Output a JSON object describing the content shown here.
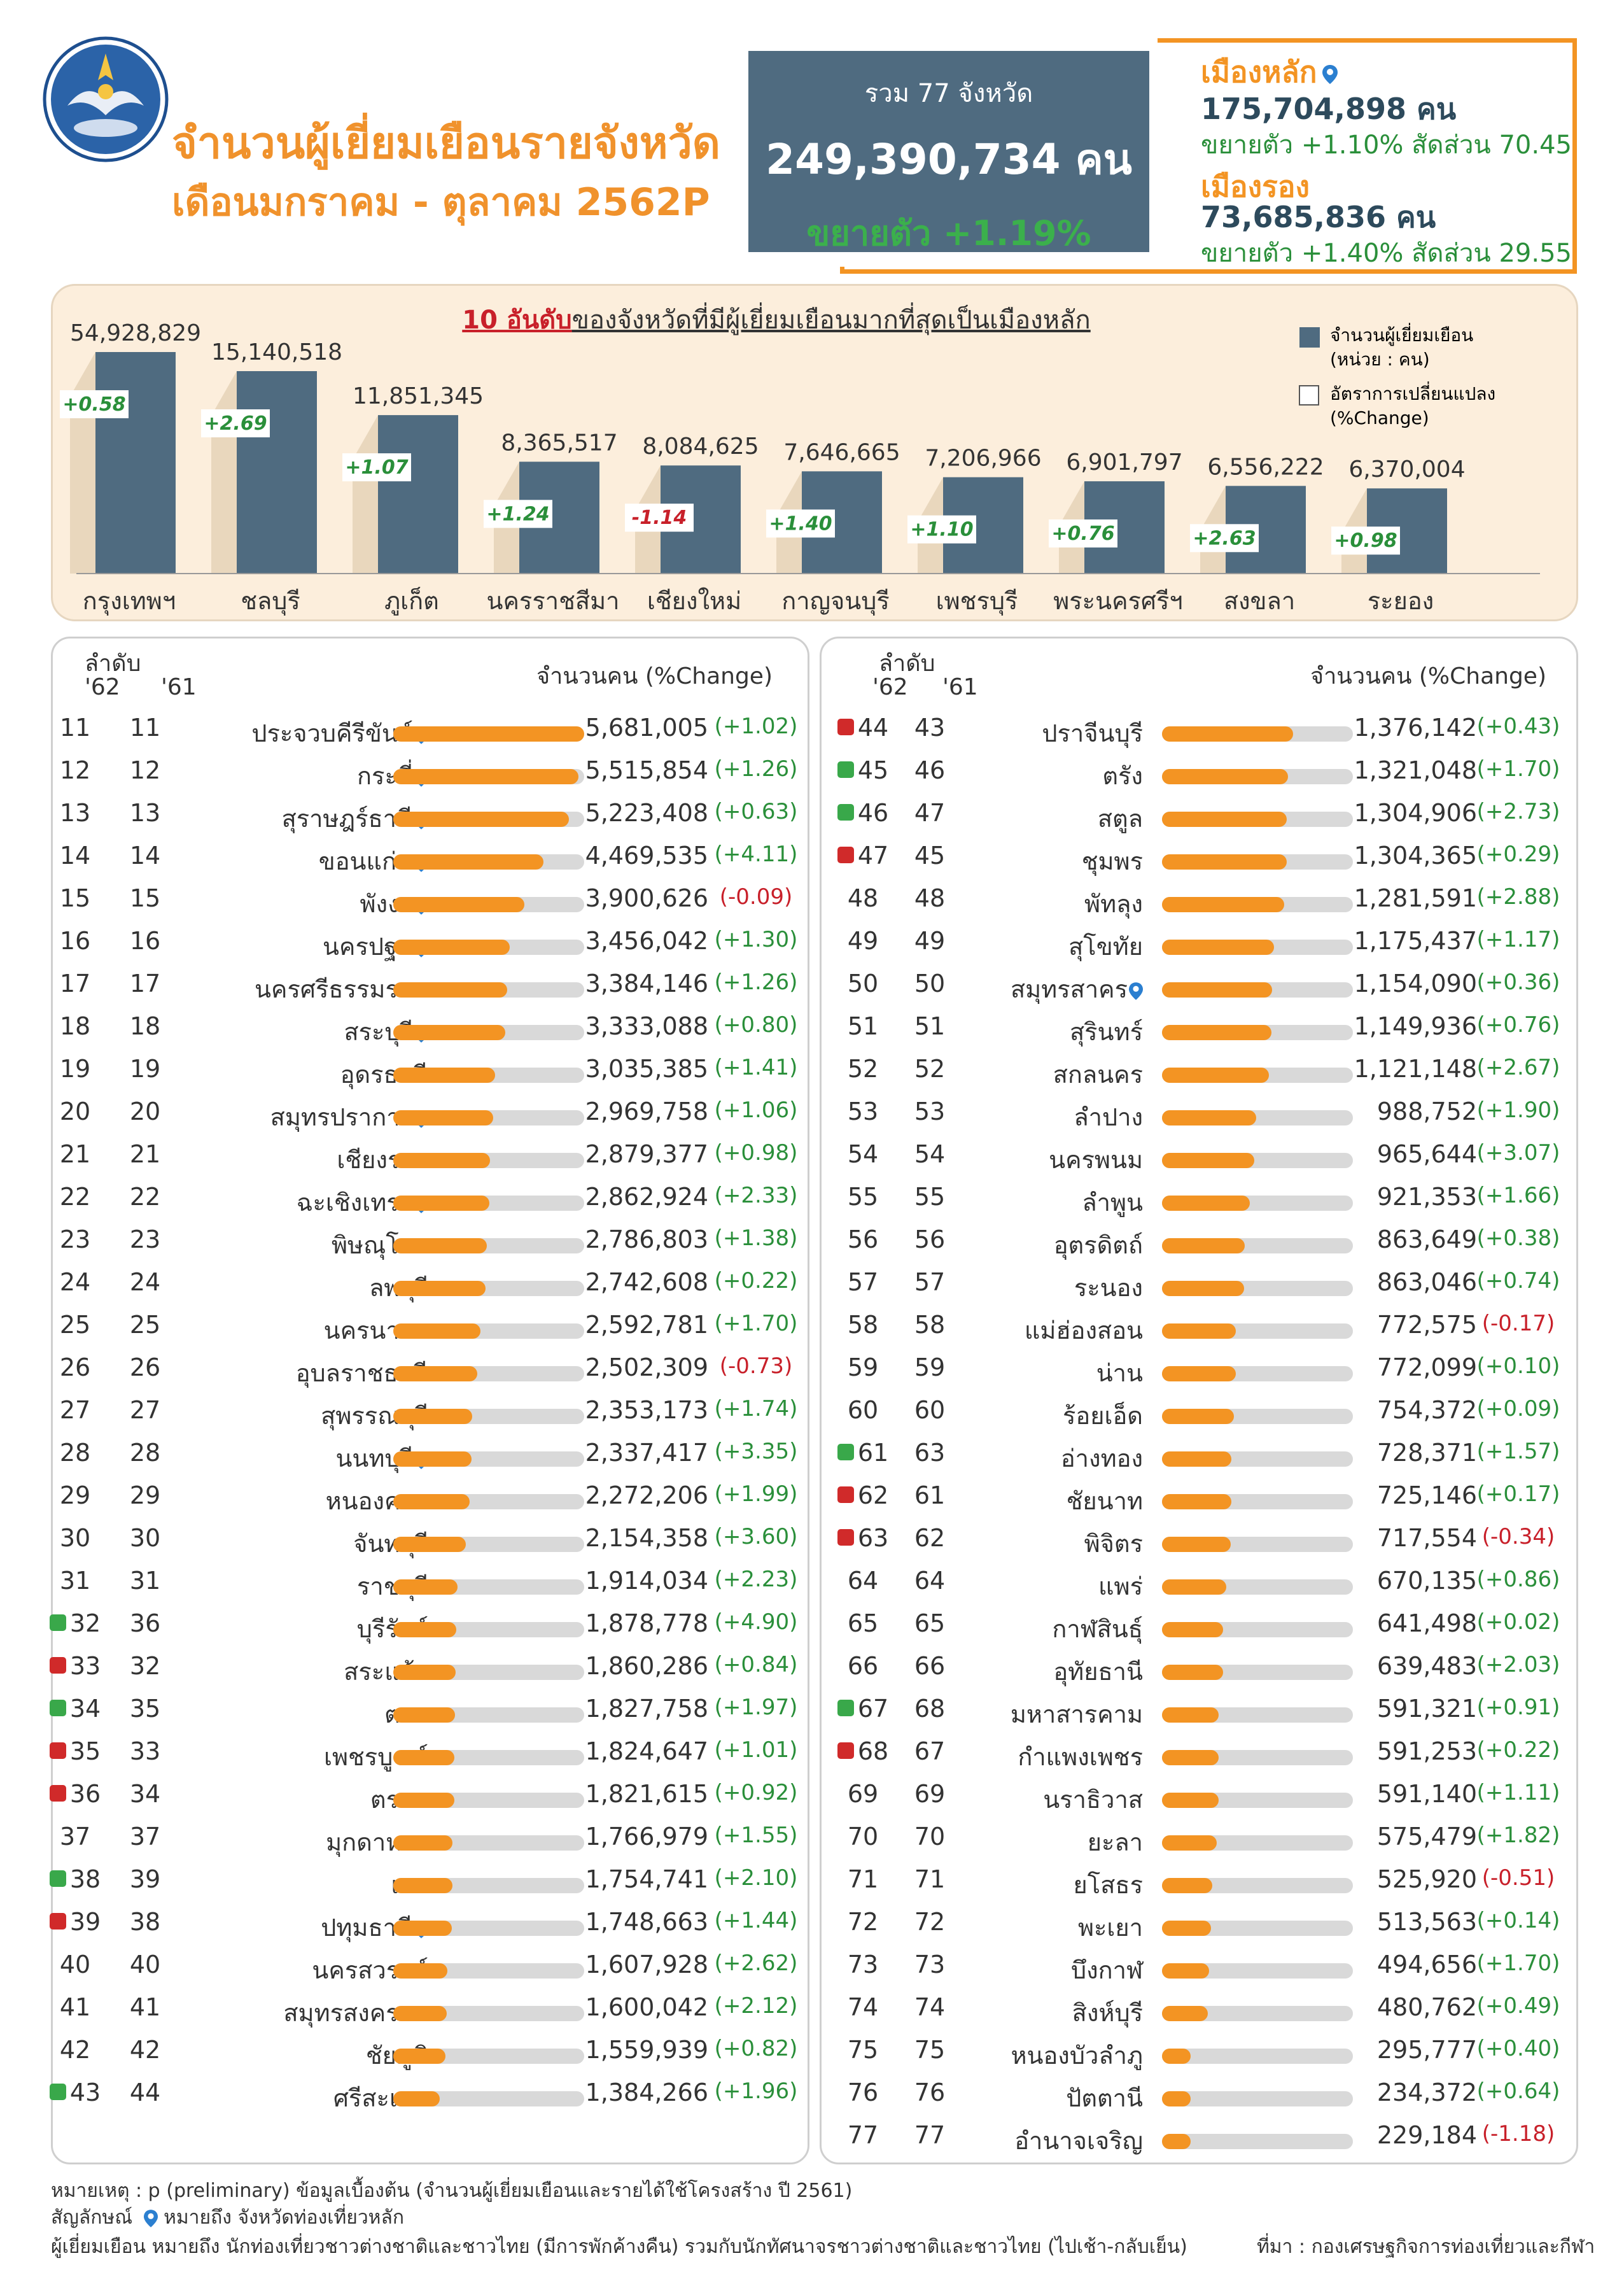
{
  "title_line1": "จำนวนผู้เยี่ยมเยือนรายจังหวัด",
  "title_line2": "เดือนมกราคม - ตุลาคม 2562P",
  "total": {
    "label": "รวม 77 จังหวัด",
    "value": "249,390,734 คน",
    "growth": "ขยายตัว +1.19%"
  },
  "main_city": {
    "label": "เมืองหลัก",
    "value": "175,704,898 คน",
    "detail": "ขยายตัว +1.10% สัดส่วน 70.45"
  },
  "secondary_city": {
    "label": "เมืองรอง",
    "value": "73,685,836 คน",
    "detail": "ขยายตัว +1.40% สัดส่วน 29.55"
  },
  "top10": {
    "title_hl": "10 อันดับ",
    "title_rest": "ของจังหวัดที่มีผู้เยี่ยมเยือนมากที่สุดเป็นเมืองหลัก",
    "legend_bar": "จำนวนผู้เยี่ยมเยือน",
    "legend_bar_unit": "(หน่วย : คน)",
    "legend_change": "อัตราการเปลี่ยนแปลง",
    "legend_change_unit": "(%Change)"
  },
  "chart_data": {
    "type": "bar",
    "categories": [
      "กรุงเทพฯ",
      "ชลบุรี",
      "ภูเก็ต",
      "นครราชสีมา",
      "เชียงใหม่",
      "กาญจนบุรี",
      "เพชรบุรี",
      "พระนครศรีฯ",
      "สงขลา",
      "ระยอง"
    ],
    "values": [
      54928829,
      15140518,
      11851345,
      8365517,
      8084625,
      7646665,
      7206966,
      6901797,
      6556222,
      6370004
    ],
    "value_labels": [
      "54,928,829",
      "15,140,518",
      "11,851,345",
      "8,365,517",
      "8,084,625",
      "7,646,665",
      "7,206,966",
      "6,901,797",
      "6,556,222",
      "6,370,004"
    ],
    "change": [
      "+0.58",
      "+2.69",
      "+1.07",
      "+1.24",
      "-1.14",
      "+1.40",
      "+1.10",
      "+0.76",
      "+2.63",
      "+0.98"
    ]
  },
  "table_headers": {
    "rank": "ลำดับ",
    "y62": "'62",
    "y61": "'61",
    "value": "จำนวนคน (%Change)"
  },
  "left_rows": [
    {
      "r62": "11",
      "r61": "11",
      "name": "ประจวบคีรีขันธ์",
      "pin": true,
      "val": "5,681,005",
      "chg": "(+1.02)",
      "v": 5681005,
      "dir": ""
    },
    {
      "r62": "12",
      "r61": "12",
      "name": "กระบี่",
      "pin": true,
      "val": "5,515,854",
      "chg": "(+1.26)",
      "v": 5515854,
      "dir": ""
    },
    {
      "r62": "13",
      "r61": "13",
      "name": "สุราษฎร์ธานี",
      "pin": true,
      "val": "5,223,408",
      "chg": "(+0.63)",
      "v": 5223408,
      "dir": ""
    },
    {
      "r62": "14",
      "r61": "14",
      "name": "ขอนแก่น",
      "pin": true,
      "val": "4,469,535",
      "chg": "(+4.11)",
      "v": 4469535,
      "dir": ""
    },
    {
      "r62": "15",
      "r61": "15",
      "name": "พังงา",
      "pin": true,
      "val": "3,900,626",
      "chg": "(-0.09)",
      "v": 3900626,
      "dir": ""
    },
    {
      "r62": "16",
      "r61": "16",
      "name": "นครปฐม",
      "pin": true,
      "val": "3,456,042",
      "chg": "(+1.30)",
      "v": 3456042,
      "dir": ""
    },
    {
      "r62": "17",
      "r61": "17",
      "name": "นครศรีธรรมราช",
      "pin": false,
      "val": "3,384,146",
      "chg": "(+1.26)",
      "v": 3384146,
      "dir": ""
    },
    {
      "r62": "18",
      "r61": "18",
      "name": "สระบุรี",
      "pin": true,
      "val": "3,333,088",
      "chg": "(+0.80)",
      "v": 3333088,
      "dir": ""
    },
    {
      "r62": "19",
      "r61": "19",
      "name": "อุดรธานี",
      "pin": false,
      "val": "3,035,385",
      "chg": "(+1.41)",
      "v": 3035385,
      "dir": ""
    },
    {
      "r62": "20",
      "r61": "20",
      "name": "สมุทรปราการ",
      "pin": true,
      "val": "2,969,758",
      "chg": "(+1.06)",
      "v": 2969758,
      "dir": ""
    },
    {
      "r62": "21",
      "r61": "21",
      "name": "เชียงราย",
      "pin": false,
      "val": "2,879,377",
      "chg": "(+0.98)",
      "v": 2879377,
      "dir": ""
    },
    {
      "r62": "22",
      "r61": "22",
      "name": "ฉะเชิงเทรา",
      "pin": true,
      "val": "2,862,924",
      "chg": "(+2.33)",
      "v": 2862924,
      "dir": ""
    },
    {
      "r62": "23",
      "r61": "23",
      "name": "พิษณุโลก",
      "pin": false,
      "val": "2,786,803",
      "chg": "(+1.38)",
      "v": 2786803,
      "dir": ""
    },
    {
      "r62": "24",
      "r61": "24",
      "name": "ลพบุรี",
      "pin": false,
      "val": "2,742,608",
      "chg": "(+0.22)",
      "v": 2742608,
      "dir": ""
    },
    {
      "r62": "25",
      "r61": "25",
      "name": "นครนายก",
      "pin": false,
      "val": "2,592,781",
      "chg": "(+1.70)",
      "v": 2592781,
      "dir": ""
    },
    {
      "r62": "26",
      "r61": "26",
      "name": "อุบลราชธานี",
      "pin": false,
      "val": "2,502,309",
      "chg": "(-0.73)",
      "v": 2502309,
      "dir": ""
    },
    {
      "r62": "27",
      "r61": "27",
      "name": "สุพรรณบุรี",
      "pin": false,
      "val": "2,353,173",
      "chg": "(+1.74)",
      "v": 2353173,
      "dir": ""
    },
    {
      "r62": "28",
      "r61": "28",
      "name": "นนทบุรี",
      "pin": true,
      "val": "2,337,417",
      "chg": "(+3.35)",
      "v": 2337417,
      "dir": ""
    },
    {
      "r62": "29",
      "r61": "29",
      "name": "หนองคาย",
      "pin": false,
      "val": "2,272,206",
      "chg": "(+1.99)",
      "v": 2272206,
      "dir": ""
    },
    {
      "r62": "30",
      "r61": "30",
      "name": "จันทบุรี",
      "pin": false,
      "val": "2,154,358",
      "chg": "(+3.60)",
      "v": 2154358,
      "dir": ""
    },
    {
      "r62": "31",
      "r61": "31",
      "name": "ราชบุรี",
      "pin": false,
      "val": "1,914,034",
      "chg": "(+2.23)",
      "v": 1914034,
      "dir": ""
    },
    {
      "r62": "32",
      "r61": "36",
      "name": "บุรีรัมย์",
      "pin": false,
      "val": "1,878,778",
      "chg": "(+4.90)",
      "v": 1878778,
      "dir": "up"
    },
    {
      "r62": "33",
      "r61": "32",
      "name": "สระแก้ว",
      "pin": false,
      "val": "1,860,286",
      "chg": "(+0.84)",
      "v": 1860286,
      "dir": "down"
    },
    {
      "r62": "34",
      "r61": "35",
      "name": "ตาก",
      "pin": false,
      "val": "1,827,758",
      "chg": "(+1.97)",
      "v": 1827758,
      "dir": "up"
    },
    {
      "r62": "35",
      "r61": "33",
      "name": "เพชรบูรณ์",
      "pin": false,
      "val": "1,824,647",
      "chg": "(+1.01)",
      "v": 1824647,
      "dir": "down"
    },
    {
      "r62": "36",
      "r61": "34",
      "name": "ตราด",
      "pin": false,
      "val": "1,821,615",
      "chg": "(+0.92)",
      "v": 1821615,
      "dir": "down"
    },
    {
      "r62": "37",
      "r61": "37",
      "name": "มุกดาหาร",
      "pin": false,
      "val": "1,766,979",
      "chg": "(+1.55)",
      "v": 1766979,
      "dir": ""
    },
    {
      "r62": "38",
      "r61": "39",
      "name": "เลย",
      "pin": false,
      "val": "1,754,741",
      "chg": "(+2.10)",
      "v": 1754741,
      "dir": "up"
    },
    {
      "r62": "39",
      "r61": "38",
      "name": "ปทุมธานี",
      "pin": true,
      "val": "1,748,663",
      "chg": "(+1.44)",
      "v": 1748663,
      "dir": "down"
    },
    {
      "r62": "40",
      "r61": "40",
      "name": "นครสวรรค์",
      "pin": false,
      "val": "1,607,928",
      "chg": "(+2.62)",
      "v": 1607928,
      "dir": ""
    },
    {
      "r62": "41",
      "r61": "41",
      "name": "สมุทรสงคราม",
      "pin": false,
      "val": "1,600,042",
      "chg": "(+2.12)",
      "v": 1600042,
      "dir": ""
    },
    {
      "r62": "42",
      "r61": "42",
      "name": "ชัยภูมิ",
      "pin": false,
      "val": "1,559,939",
      "chg": "(+0.82)",
      "v": 1559939,
      "dir": ""
    },
    {
      "r62": "43",
      "r61": "44",
      "name": "ศรีสะเกษ",
      "pin": false,
      "val": "1,384,266",
      "chg": "(+1.96)",
      "v": 1384266,
      "dir": "up"
    }
  ],
  "right_rows": [
    {
      "r62": "44",
      "r61": "43",
      "name": "ปราจีนบุรี",
      "pin": false,
      "val": "1,376,142",
      "chg": "(+0.43)",
      "v": 1376142,
      "dir": "down"
    },
    {
      "r62": "45",
      "r61": "46",
      "name": "ตรัง",
      "pin": false,
      "val": "1,321,048",
      "chg": "(+1.70)",
      "v": 1321048,
      "dir": "up"
    },
    {
      "r62": "46",
      "r61": "47",
      "name": "สตูล",
      "pin": false,
      "val": "1,304,906",
      "chg": "(+2.73)",
      "v": 1304906,
      "dir": "up"
    },
    {
      "r62": "47",
      "r61": "45",
      "name": "ชุมพร",
      "pin": false,
      "val": "1,304,365",
      "chg": "(+0.29)",
      "v": 1304365,
      "dir": "down"
    },
    {
      "r62": "48",
      "r61": "48",
      "name": "พัทลุง",
      "pin": false,
      "val": "1,281,591",
      "chg": "(+2.88)",
      "v": 1281591,
      "dir": ""
    },
    {
      "r62": "49",
      "r61": "49",
      "name": "สุโขทัย",
      "pin": false,
      "val": "1,175,437",
      "chg": "(+1.17)",
      "v": 1175437,
      "dir": ""
    },
    {
      "r62": "50",
      "r61": "50",
      "name": "สมุทรสาคร",
      "pin": true,
      "val": "1,154,090",
      "chg": "(+0.36)",
      "v": 1154090,
      "dir": ""
    },
    {
      "r62": "51",
      "r61": "51",
      "name": "สุรินทร์",
      "pin": false,
      "val": "1,149,936",
      "chg": "(+0.76)",
      "v": 1149936,
      "dir": ""
    },
    {
      "r62": "52",
      "r61": "52",
      "name": "สกลนคร",
      "pin": false,
      "val": "1,121,148",
      "chg": "(+2.67)",
      "v": 1121148,
      "dir": ""
    },
    {
      "r62": "53",
      "r61": "53",
      "name": "ลำปาง",
      "pin": false,
      "val": "988,752",
      "chg": "(+1.90)",
      "v": 988752,
      "dir": ""
    },
    {
      "r62": "54",
      "r61": "54",
      "name": "นครพนม",
      "pin": false,
      "val": "965,644",
      "chg": "(+3.07)",
      "v": 965644,
      "dir": ""
    },
    {
      "r62": "55",
      "r61": "55",
      "name": "ลำพูน",
      "pin": false,
      "val": "921,353",
      "chg": "(+1.66)",
      "v": 921353,
      "dir": ""
    },
    {
      "r62": "56",
      "r61": "56",
      "name": "อุตรดิตถ์",
      "pin": false,
      "val": "863,649",
      "chg": "(+0.38)",
      "v": 863649,
      "dir": ""
    },
    {
      "r62": "57",
      "r61": "57",
      "name": "ระนอง",
      "pin": false,
      "val": "863,046",
      "chg": "(+0.74)",
      "v": 863046,
      "dir": ""
    },
    {
      "r62": "58",
      "r61": "58",
      "name": "แม่ฮ่องสอน",
      "pin": false,
      "val": "772,575",
      "chg": "(-0.17)",
      "v": 772575,
      "dir": ""
    },
    {
      "r62": "59",
      "r61": "59",
      "name": "น่าน",
      "pin": false,
      "val": "772,099",
      "chg": "(+0.10)",
      "v": 772099,
      "dir": ""
    },
    {
      "r62": "60",
      "r61": "60",
      "name": "ร้อยเอ็ด",
      "pin": false,
      "val": "754,372",
      "chg": "(+0.09)",
      "v": 754372,
      "dir": ""
    },
    {
      "r62": "61",
      "r61": "63",
      "name": "อ่างทอง",
      "pin": false,
      "val": "728,371",
      "chg": "(+1.57)",
      "v": 728371,
      "dir": "up"
    },
    {
      "r62": "62",
      "r61": "61",
      "name": "ชัยนาท",
      "pin": false,
      "val": "725,146",
      "chg": "(+0.17)",
      "v": 725146,
      "dir": "down"
    },
    {
      "r62": "63",
      "r61": "62",
      "name": "พิจิตร",
      "pin": false,
      "val": "717,554",
      "chg": "(-0.34)",
      "v": 717554,
      "dir": "down"
    },
    {
      "r62": "64",
      "r61": "64",
      "name": "แพร่",
      "pin": false,
      "val": "670,135",
      "chg": "(+0.86)",
      "v": 670135,
      "dir": ""
    },
    {
      "r62": "65",
      "r61": "65",
      "name": "กาฬสินธุ์",
      "pin": false,
      "val": "641,498",
      "chg": "(+0.02)",
      "v": 641498,
      "dir": ""
    },
    {
      "r62": "66",
      "r61": "66",
      "name": "อุทัยธานี",
      "pin": false,
      "val": "639,483",
      "chg": "(+2.03)",
      "v": 639483,
      "dir": ""
    },
    {
      "r62": "67",
      "r61": "68",
      "name": "มหาสารคาม",
      "pin": false,
      "val": "591,321",
      "chg": "(+0.91)",
      "v": 591321,
      "dir": "up"
    },
    {
      "r62": "68",
      "r61": "67",
      "name": "กำแพงเพชร",
      "pin": false,
      "val": "591,253",
      "chg": "(+0.22)",
      "v": 591253,
      "dir": "down"
    },
    {
      "r62": "69",
      "r61": "69",
      "name": "นราธิวาส",
      "pin": false,
      "val": "591,140",
      "chg": "(+1.11)",
      "v": 591140,
      "dir": ""
    },
    {
      "r62": "70",
      "r61": "70",
      "name": "ยะลา",
      "pin": false,
      "val": "575,479",
      "chg": "(+1.82)",
      "v": 575479,
      "dir": ""
    },
    {
      "r62": "71",
      "r61": "71",
      "name": "ยโสธร",
      "pin": false,
      "val": "525,920",
      "chg": "(-0.51)",
      "v": 525920,
      "dir": ""
    },
    {
      "r62": "72",
      "r61": "72",
      "name": "พะเยา",
      "pin": false,
      "val": "513,563",
      "chg": "(+0.14)",
      "v": 513563,
      "dir": ""
    },
    {
      "r62": "73",
      "r61": "73",
      "name": "บึงกาฬ",
      "pin": false,
      "val": "494,656",
      "chg": "(+1.70)",
      "v": 494656,
      "dir": ""
    },
    {
      "r62": "74",
      "r61": "74",
      "name": "สิงห์บุรี",
      "pin": false,
      "val": "480,762",
      "chg": "(+0.49)",
      "v": 480762,
      "dir": ""
    },
    {
      "r62": "75",
      "r61": "75",
      "name": "หนองบัวลำภู",
      "pin": false,
      "val": "295,777",
      "chg": "(+0.40)",
      "v": 295777,
      "dir": ""
    },
    {
      "r62": "76",
      "r61": "76",
      "name": "ปัตตานี",
      "pin": false,
      "val": "234,372",
      "chg": "(+0.64)",
      "v": 234372,
      "dir": ""
    },
    {
      "r62": "77",
      "r61": "77",
      "name": "อำนาจเจริญ",
      "pin": false,
      "val": "229,184",
      "chg": "(-1.18)",
      "v": 229184,
      "dir": ""
    }
  ],
  "footer": {
    "note": "หมายเหตุ : p (preliminary) ข้อมูลเบื้องต้น (จำนวนผู้เยี่ยมเยือนและรายได้ใช้โครงสร้าง ปี 2561)",
    "symbol": "สัญลักษณ์",
    "symbol_desc": "หมายถึง จังหวัดท่องเที่ยวหลัก",
    "visitor_def": "ผู้เยี่ยมเยือน หมายถึง นักท่องเที่ยวชาวต่างชาติและชาวไทย (มีการพักค้างคืน) รวมกับนักทัศนาจรชาวต่างชาติและชาวไทย (ไปเช้า-กลับเย็น)",
    "source": "ที่มา :   กองเศรษฐกิจการท่องเที่ยวและกีฬา"
  },
  "colors": {
    "orange": "#f39423",
    "slate": "#4f6b80",
    "green": "#2a8f3a",
    "red": "#c8202a"
  }
}
